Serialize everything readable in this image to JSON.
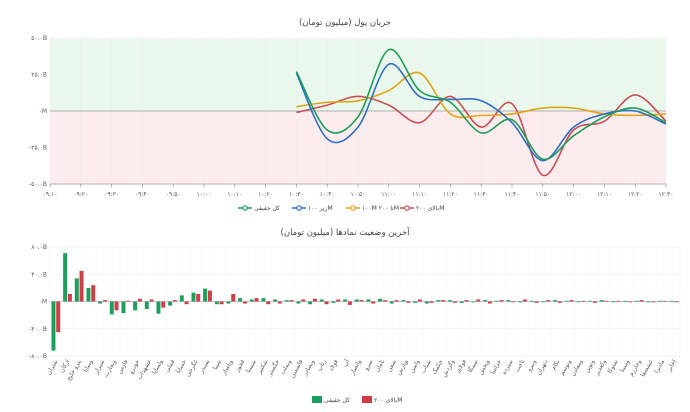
{
  "chart_data": [
    {
      "type": "line",
      "title": "جریان پول (میلیون تومان)",
      "ylim": [
        -50,
        50
      ],
      "yticks": [
        "۵۰.۰B",
        "۲۵.۰B",
        "۰M",
        "-۲۵.۰B",
        "-۵۰.۰B"
      ],
      "x": [
        "۰۹:۱۰",
        "۰۹:۲۰",
        "۰۹:۳۰",
        "۰۹:۴۰",
        "۰۹:۵۰",
        "۱۰:۰۰",
        "۱۰:۱۰",
        "۱۰:۲۰",
        "۱۰:۳۰",
        "۱۰:۴۰",
        "۱۰:۵۰",
        "۱۱:۰۰",
        "۱۱:۱۰",
        "۱۱:۲۰",
        "۱۱:۳۰",
        "۱۱:۴۰",
        "۱۱:۵۰",
        "۱۲:۰۰",
        "۱۲:۱۰",
        "۱۲:۲۰",
        "۱۲:۳۰"
      ],
      "positive_band_color": "#eaf7ec",
      "negative_band_color": "#fdeced",
      "series": [
        {
          "name": "کل حقیقی",
          "color": "#1c9e5a",
          "values": [
            null,
            null,
            null,
            null,
            null,
            null,
            null,
            null,
            27,
            -13,
            -4,
            42,
            14,
            6,
            -15,
            -6,
            -33,
            -17,
            -4,
            2,
            -8
          ]
        },
        {
          "name": "زیر ۱۰۰M",
          "color": "#2f6fc4",
          "values": [
            null,
            null,
            null,
            null,
            null,
            null,
            null,
            null,
            26,
            -19,
            -11,
            32,
            10,
            8,
            7,
            -8,
            -34,
            -11,
            -2,
            0,
            -9
          ]
        },
        {
          "name": "۱۰۰M تا ۲۰۰M",
          "color": "#e0a516",
          "values": [
            null,
            null,
            null,
            null,
            null,
            null,
            null,
            null,
            3,
            6,
            7,
            14,
            26,
            -2,
            -3,
            -2,
            2,
            2,
            -2,
            -3,
            -2
          ]
        },
        {
          "name": "بالای ۲۰۰M",
          "color": "#c94e55",
          "values": [
            null,
            null,
            null,
            null,
            null,
            null,
            null,
            null,
            -1,
            4,
            10,
            4,
            -8,
            10,
            -11,
            5,
            -44,
            -13,
            -7,
            11,
            -7
          ]
        }
      ]
    },
    {
      "type": "bar",
      "title": "آخرین وضعیت نمادها (میلیون تومان)",
      "ylim": [
        -80,
        80
      ],
      "yticks": [
        "۸۰.۰B",
        "۴۰.۰B",
        "۰M",
        "-۴۰.۰B",
        "-۸۰.۰B"
      ],
      "categories": [
        "شتران",
        "ارکان",
        "پترو خلیج",
        "وساپا",
        "شیراز",
        "وتجارت",
        "فارس",
        "خودرو",
        "غشهداب",
        "ولساپا",
        "فملی",
        "خساپا",
        "غگرجی",
        "شبندر",
        "شپنا",
        "وپاسار",
        "فخوز",
        "شستا",
        "شکبیر",
        "خگستر",
        "وبملت",
        "فاسمین",
        "وبصادر",
        "رتاپ",
        "فولاد",
        "آپ",
        "وانصار",
        "سرو",
        "ثامان",
        "شفن",
        "وپارس",
        "وامین",
        "شتاب",
        "خکمک",
        "وگردش",
        "فولای",
        "سمگا",
        "وپخش",
        "خزامیا",
        "سپرده",
        "ثاخت",
        "ونیرو",
        "دتهران",
        "بکام",
        "وتوسم",
        "ومعادن",
        "ونوین",
        "وکغدیر",
        "شتوکا",
        "وسینا",
        "وخارزم",
        "غشصفا",
        "مادیرا",
        "اخابر"
      ],
      "series": [
        {
          "name": "کل حقیقی",
          "color": "#1e9e5c",
          "values": [
            -72,
            71,
            34,
            20,
            -3,
            -19,
            -17,
            -13,
            -11,
            -18,
            -6,
            9,
            13,
            19,
            -4,
            -3,
            5,
            3,
            5,
            3,
            2,
            -3,
            -4,
            3,
            -2,
            3,
            3,
            3,
            4,
            -3,
            2,
            -2,
            -3,
            2,
            2,
            -2,
            -1,
            2,
            1,
            2,
            -1,
            1,
            -1,
            2,
            1,
            -1,
            1,
            2,
            -1,
            1,
            1,
            -1,
            1,
            1
          ]
        },
        {
          "name": "بالای ۲۰۰M",
          "color": "#cf3e46",
          "values": [
            -45,
            11,
            45,
            24,
            2,
            -13,
            1,
            4,
            3,
            -9,
            2,
            -4,
            11,
            16,
            -4,
            11,
            -3,
            5,
            -4,
            -3,
            2,
            3,
            4,
            -4,
            3,
            -5,
            2,
            -3,
            2,
            2,
            -2,
            3,
            -2,
            2,
            -2,
            2,
            3,
            -3,
            2,
            -1,
            3,
            -2,
            2,
            -2,
            2,
            1,
            -2,
            1,
            1,
            -1,
            2,
            -1,
            1,
            -1
          ]
        }
      ]
    }
  ]
}
